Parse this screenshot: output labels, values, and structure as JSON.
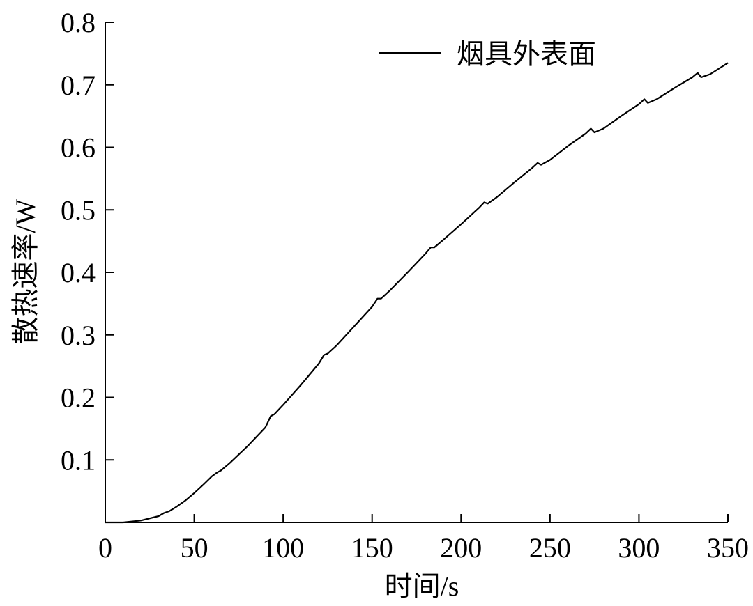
{
  "chart_data": {
    "type": "line",
    "xlabel": "时间/s",
    "ylabel": "散热速率/W",
    "xlim": [
      0,
      350
    ],
    "ylim": [
      0,
      0.8
    ],
    "xticks": [
      0,
      50,
      100,
      150,
      200,
      250,
      300,
      350
    ],
    "yticks": [
      0.1,
      0.2,
      0.3,
      0.4,
      0.5,
      0.6,
      0.7,
      0.8
    ],
    "xtick_labels": [
      "0",
      "50",
      "100",
      "150",
      "200",
      "250",
      "300",
      "350"
    ],
    "ytick_labels": [
      "0.1",
      "0.2",
      "0.3",
      "0.4",
      "0.5",
      "0.6",
      "0.7",
      "0.8"
    ],
    "grid": false,
    "legend": {
      "position": "top-right"
    },
    "series": [
      {
        "name": "烟具外表面",
        "color": "#000000",
        "x": [
          0,
          10,
          20,
          30,
          33,
          36,
          40,
          45,
          50,
          55,
          60,
          63,
          65,
          70,
          80,
          90,
          93,
          95,
          100,
          110,
          120,
          123,
          125,
          130,
          140,
          150,
          153,
          155,
          160,
          170,
          180,
          183,
          185,
          190,
          200,
          210,
          213,
          215,
          220,
          230,
          240,
          243,
          245,
          250,
          260,
          270,
          273,
          275,
          280,
          290,
          300,
          303,
          305,
          310,
          320,
          330,
          333,
          335,
          340,
          350
        ],
        "y": [
          0.0,
          0.0,
          0.003,
          0.01,
          0.015,
          0.018,
          0.025,
          0.035,
          0.047,
          0.06,
          0.074,
          0.08,
          0.083,
          0.095,
          0.122,
          0.152,
          0.17,
          0.173,
          0.188,
          0.22,
          0.254,
          0.268,
          0.27,
          0.283,
          0.314,
          0.345,
          0.358,
          0.358,
          0.371,
          0.4,
          0.43,
          0.44,
          0.44,
          0.452,
          0.477,
          0.503,
          0.512,
          0.51,
          0.52,
          0.544,
          0.567,
          0.575,
          0.572,
          0.58,
          0.602,
          0.622,
          0.63,
          0.624,
          0.63,
          0.65,
          0.669,
          0.677,
          0.671,
          0.677,
          0.695,
          0.712,
          0.719,
          0.712,
          0.717,
          0.735
        ]
      }
    ]
  }
}
